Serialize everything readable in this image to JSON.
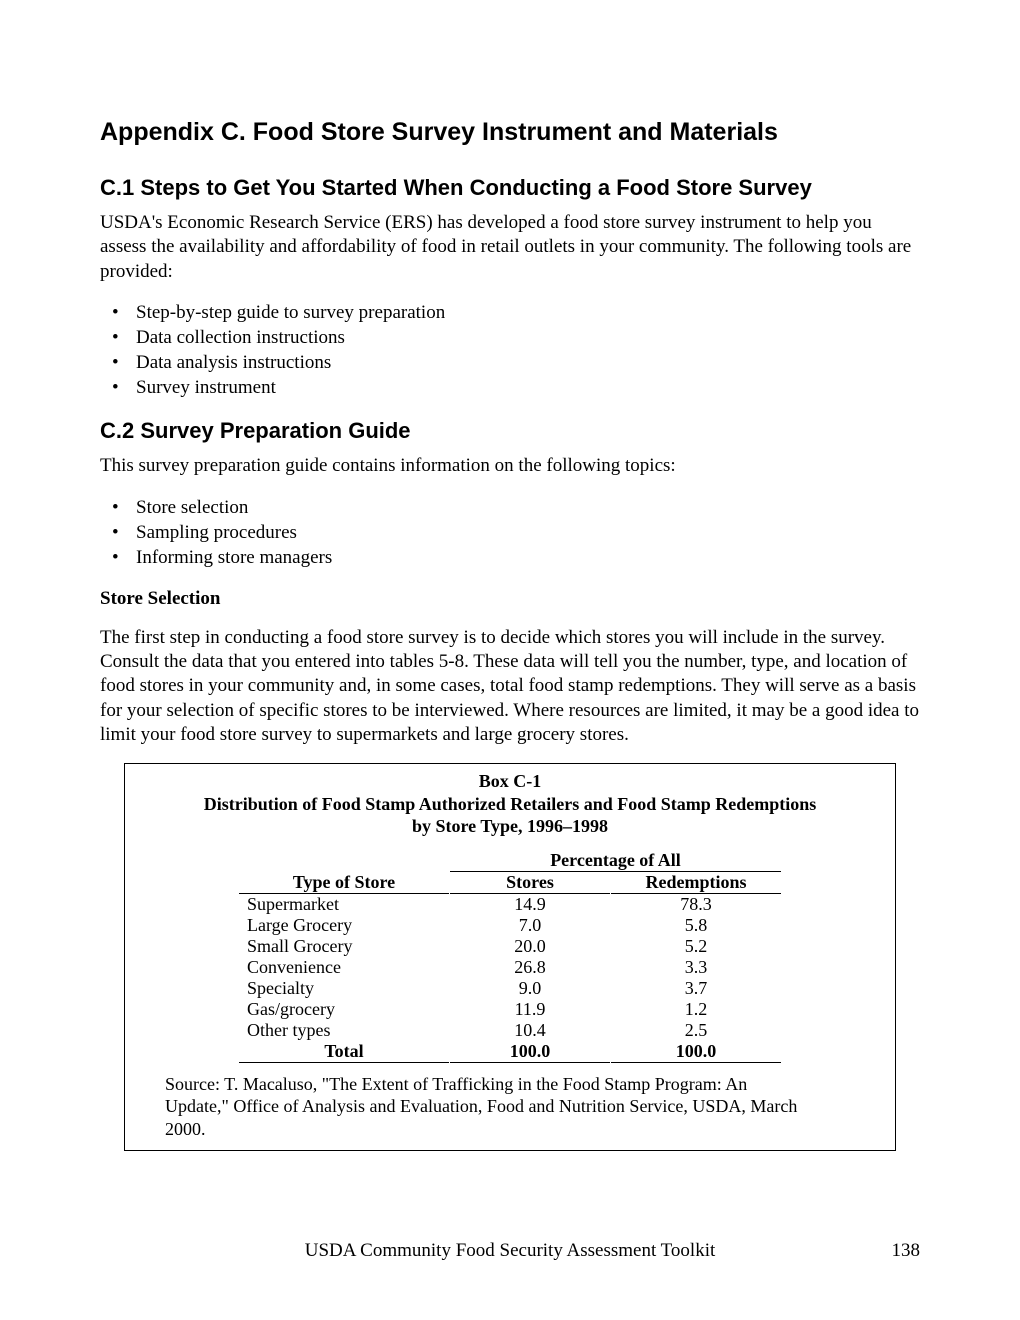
{
  "heading_main": "Appendix C.   Food Store Survey Instrument and Materials",
  "section_c1_title": "C.1  Steps to Get You Started When Conducting a Food Store Survey",
  "c1_para": "USDA's Economic Research Service (ERS) has developed a food store survey instrument to help you assess the availability and affordability of food in retail outlets in your community. The following tools are provided:",
  "c1_bullets": [
    "Step-by-step guide to survey preparation",
    "Data collection instructions",
    "Data analysis instructions",
    "Survey instrument"
  ],
  "section_c2_title": "C.2  Survey Preparation Guide",
  "c2_para": "This survey preparation guide contains information on the following topics:",
  "c2_bullets": [
    "Store selection",
    "Sampling procedures",
    "Informing store managers"
  ],
  "store_selection_heading": "Store Selection",
  "store_selection_para": "The first step in conducting a food store survey is to decide which stores you will include in the survey. Consult the data that you entered into tables 5-8. These data will tell you the number, type, and location of food stores in your community and, in some cases, total food stamp redemptions. They will serve as a basis for your selection of specific stores to be interviewed. Where resources are limited, it may be a good idea to limit your food store survey to supermarkets and large grocery stores.",
  "box": {
    "label": "Box C-1",
    "title_line1": "Distribution of Food Stamp Authorized Retailers and Food Stamp Redemptions",
    "title_line2": "by Store Type, 1996–1998",
    "span_header": "Percentage of All",
    "col_headers": [
      "Type of Store",
      "Stores",
      "Redemptions"
    ],
    "rows": [
      [
        "Supermarket",
        "14.9",
        "78.3"
      ],
      [
        "Large Grocery",
        "7.0",
        "5.8"
      ],
      [
        "Small Grocery",
        "20.0",
        "5.2"
      ],
      [
        "Convenience",
        "26.8",
        "3.3"
      ],
      [
        "Specialty",
        "9.0",
        "3.7"
      ],
      [
        "Gas/grocery",
        "11.9",
        "1.2"
      ],
      [
        "Other types",
        "10.4",
        "2.5"
      ]
    ],
    "total_row": [
      "Total",
      "100.0",
      "100.0"
    ],
    "source": "Source: T. Macaluso, \"The Extent of Trafficking in the Food Stamp Program: An Update,\" Office of Analysis and Evaluation, Food and Nutrition Service, USDA, March 2000."
  },
  "footer_text": "USDA Community Food Security Assessment Toolkit",
  "page_number": "138"
}
